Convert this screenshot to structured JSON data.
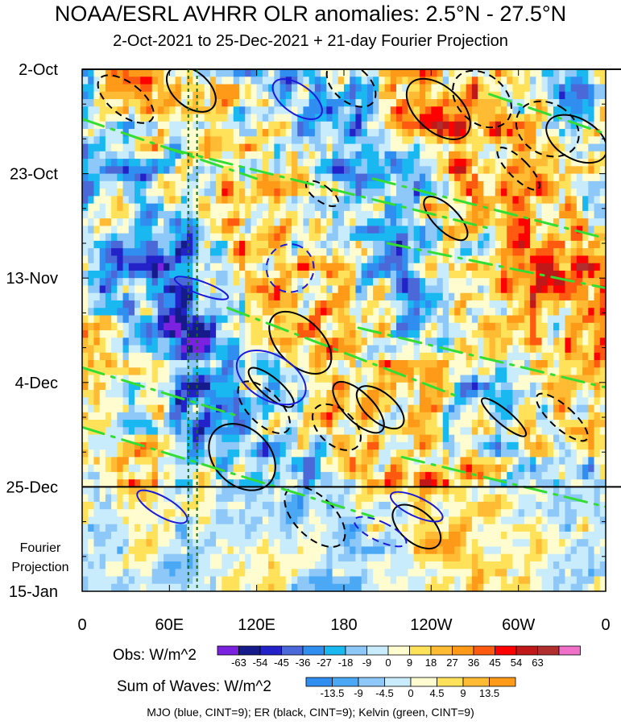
{
  "title": "NOAA/ESRL AVHRR OLR anomalies: 2.5°N - 27.5°N",
  "subtitle": "2-Oct-2021 to 25-Dec-2021 + 21-day Fourier Projection",
  "projection_label_line1": "Fourier",
  "projection_label_line2": "Projection",
  "footer": "MJO (blue, CINT=9); ER (black, CINT=9); Kelvin (green, CINT=9)",
  "colors": {
    "mjo": "#1a1adc",
    "er": "#000000",
    "kelvin": "#33dd33",
    "markers": "#1a6b1a"
  },
  "chart_data": {
    "type": "heatmap",
    "title": "NOAA/ESRL AVHRR OLR anomalies: 2.5°N - 27.5°N",
    "subtitle": "2-Oct-2021 to 25-Dec-2021 + 21-day Fourier Projection",
    "x_ticks": [
      {
        "label": "0",
        "lon": 0
      },
      {
        "label": "60E",
        "lon": 60
      },
      {
        "label": "120E",
        "lon": 120
      },
      {
        "label": "180",
        "lon": 180
      },
      {
        "label": "120W",
        "lon": 240
      },
      {
        "label": "60W",
        "lon": 300
      },
      {
        "label": "0",
        "lon": 360
      }
    ],
    "xlim": [
      0,
      360
    ],
    "y_ticks": [
      {
        "label": "2-Oct",
        "day": 0
      },
      {
        "label": "23-Oct",
        "day": 21
      },
      {
        "label": "13-Nov",
        "day": 42
      },
      {
        "label": "4-Dec",
        "day": 63
      },
      {
        "label": "25-Dec",
        "day": 84
      },
      {
        "label": "15-Jan",
        "day": 105
      }
    ],
    "ylim_days": [
      0,
      105
    ],
    "observation_end_day": 84,
    "reference_longitudes_dashed": [
      73,
      79
    ],
    "obs_colorbar": {
      "label": "Obs: W/m^2",
      "levels": [
        -63,
        -54,
        -45,
        -36,
        -27,
        -18,
        -9,
        0,
        9,
        18,
        27,
        36,
        45,
        54,
        63
      ],
      "colors": [
        "#7a22e0",
        "#151b8a",
        "#2222c8",
        "#4a68d8",
        "#2f8ef0",
        "#1ab8f0",
        "#8ec8f8",
        "#c8ecfc",
        "#fffcd0",
        "#ffe25a",
        "#ffbb33",
        "#ff9918",
        "#ff5a10",
        "#ff0000",
        "#c01818",
        "#b02e2e",
        "#f070c8"
      ]
    },
    "waves_colorbar": {
      "label": "Sum of Waves: W/m^2",
      "levels": [
        -13.5,
        -9,
        -4.5,
        0,
        4.5,
        9,
        13.5
      ],
      "colors": [
        "#2f8ef0",
        "#4aa8f4",
        "#8ec8f8",
        "#c8ecfc",
        "#fffcd0",
        "#ffe25a",
        "#ffbb33",
        "#ff9918"
      ]
    },
    "wave_contours": [
      {
        "name": "MJO",
        "color": "blue",
        "cint": 9
      },
      {
        "name": "ER",
        "color": "black",
        "cint": 9
      },
      {
        "name": "Kelvin",
        "color": "green",
        "cint": 9
      }
    ]
  }
}
